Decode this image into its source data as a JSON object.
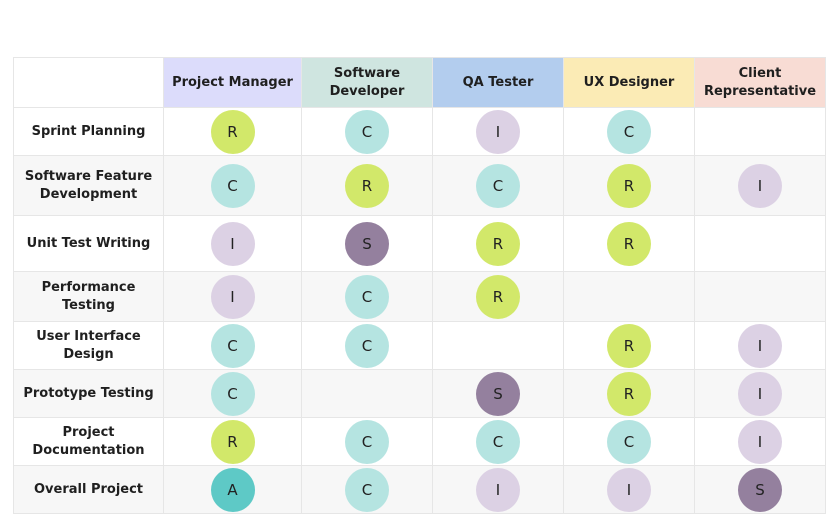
{
  "roles": [
    {
      "label": "Project Manager",
      "color": "#dcdcfb"
    },
    {
      "label": "Software Developer",
      "color": "#cfe5e0"
    },
    {
      "label": "QA Tester",
      "color": "#b3cdee"
    },
    {
      "label": "UX Designer",
      "color": "#fbebb5"
    },
    {
      "label": "Client Representative",
      "color": "#f8dcd4"
    }
  ],
  "code_colors": {
    "R": "#d2e86a",
    "C": "#b5e4e1",
    "I": "#dcd1e4",
    "S": "#94809e",
    "A": "#5ec9c6"
  },
  "tasks": [
    {
      "label": "Sprint Planning",
      "cells": [
        "R",
        "C",
        "I",
        "C",
        ""
      ]
    },
    {
      "label": "Software Feature Development",
      "cells": [
        "C",
        "R",
        "C",
        "R",
        "I"
      ]
    },
    {
      "label": "Unit Test Writing",
      "cells": [
        "I",
        "S",
        "R",
        "R",
        ""
      ]
    },
    {
      "label": "Performance Testing",
      "cells": [
        "I",
        "C",
        "R",
        "",
        ""
      ]
    },
    {
      "label": "User Interface Design",
      "cells": [
        "C",
        "C",
        "",
        "R",
        "I"
      ]
    },
    {
      "label": "Prototype Testing",
      "cells": [
        "C",
        "",
        "S",
        "R",
        "I"
      ]
    },
    {
      "label": "Project Documentation",
      "cells": [
        "R",
        "C",
        "C",
        "C",
        "I"
      ]
    },
    {
      "label": "Overall Project",
      "cells": [
        "A",
        "C",
        "I",
        "I",
        "S"
      ]
    }
  ]
}
